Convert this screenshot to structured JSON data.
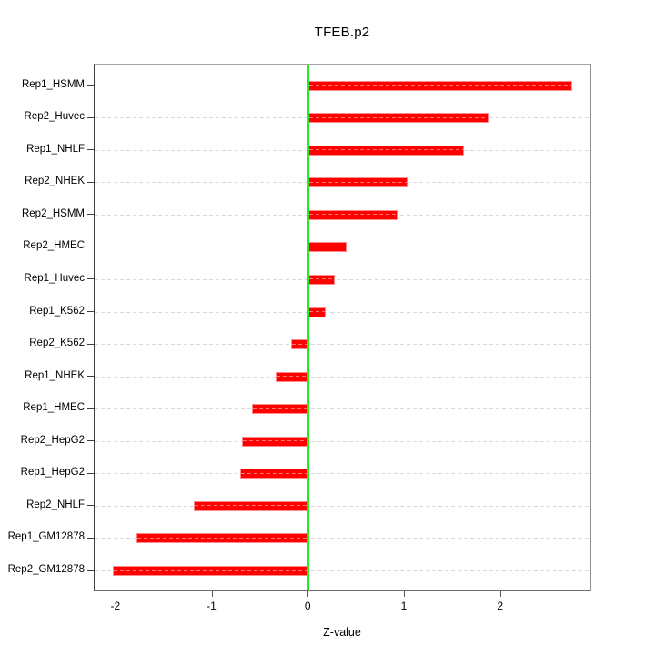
{
  "title": "TFEB.p2",
  "chart_data": {
    "type": "bar",
    "orientation": "horizontal",
    "title": "TFEB.p2",
    "xlabel": "Z-value",
    "ylabel": "",
    "categories": [
      "Rep1_HSMM",
      "Rep2_Huvec",
      "Rep1_NHLF",
      "Rep2_NHEK",
      "Rep2_HSMM",
      "Rep2_HMEC",
      "Rep1_Huvec",
      "Rep1_K562",
      "Rep2_K562",
      "Rep1_NHEK",
      "Rep1_HMEC",
      "Rep2_HepG2",
      "Rep1_HepG2",
      "Rep2_NHLF",
      "Rep1_GM12878",
      "Rep2_GM12878"
    ],
    "values": [
      2.74,
      1.87,
      1.62,
      1.03,
      0.93,
      0.4,
      0.27,
      0.18,
      -0.18,
      -0.34,
      -0.59,
      -0.69,
      -0.71,
      -1.19,
      -1.79,
      -2.04
    ],
    "xlim": [
      -2.225,
      2.93
    ],
    "xticks": [
      -2,
      -1,
      0,
      1,
      2
    ],
    "grid": "horizontal-dashed-per-row",
    "legend": "none",
    "colors": {
      "bar_fill": "#ff0000",
      "bar_border": "#ff8c8c",
      "zero_line": "#21ee21",
      "grid_dash": "#d9d9d9",
      "axis_box": "#8f8f8f",
      "tick": "#3f3f3f"
    }
  }
}
